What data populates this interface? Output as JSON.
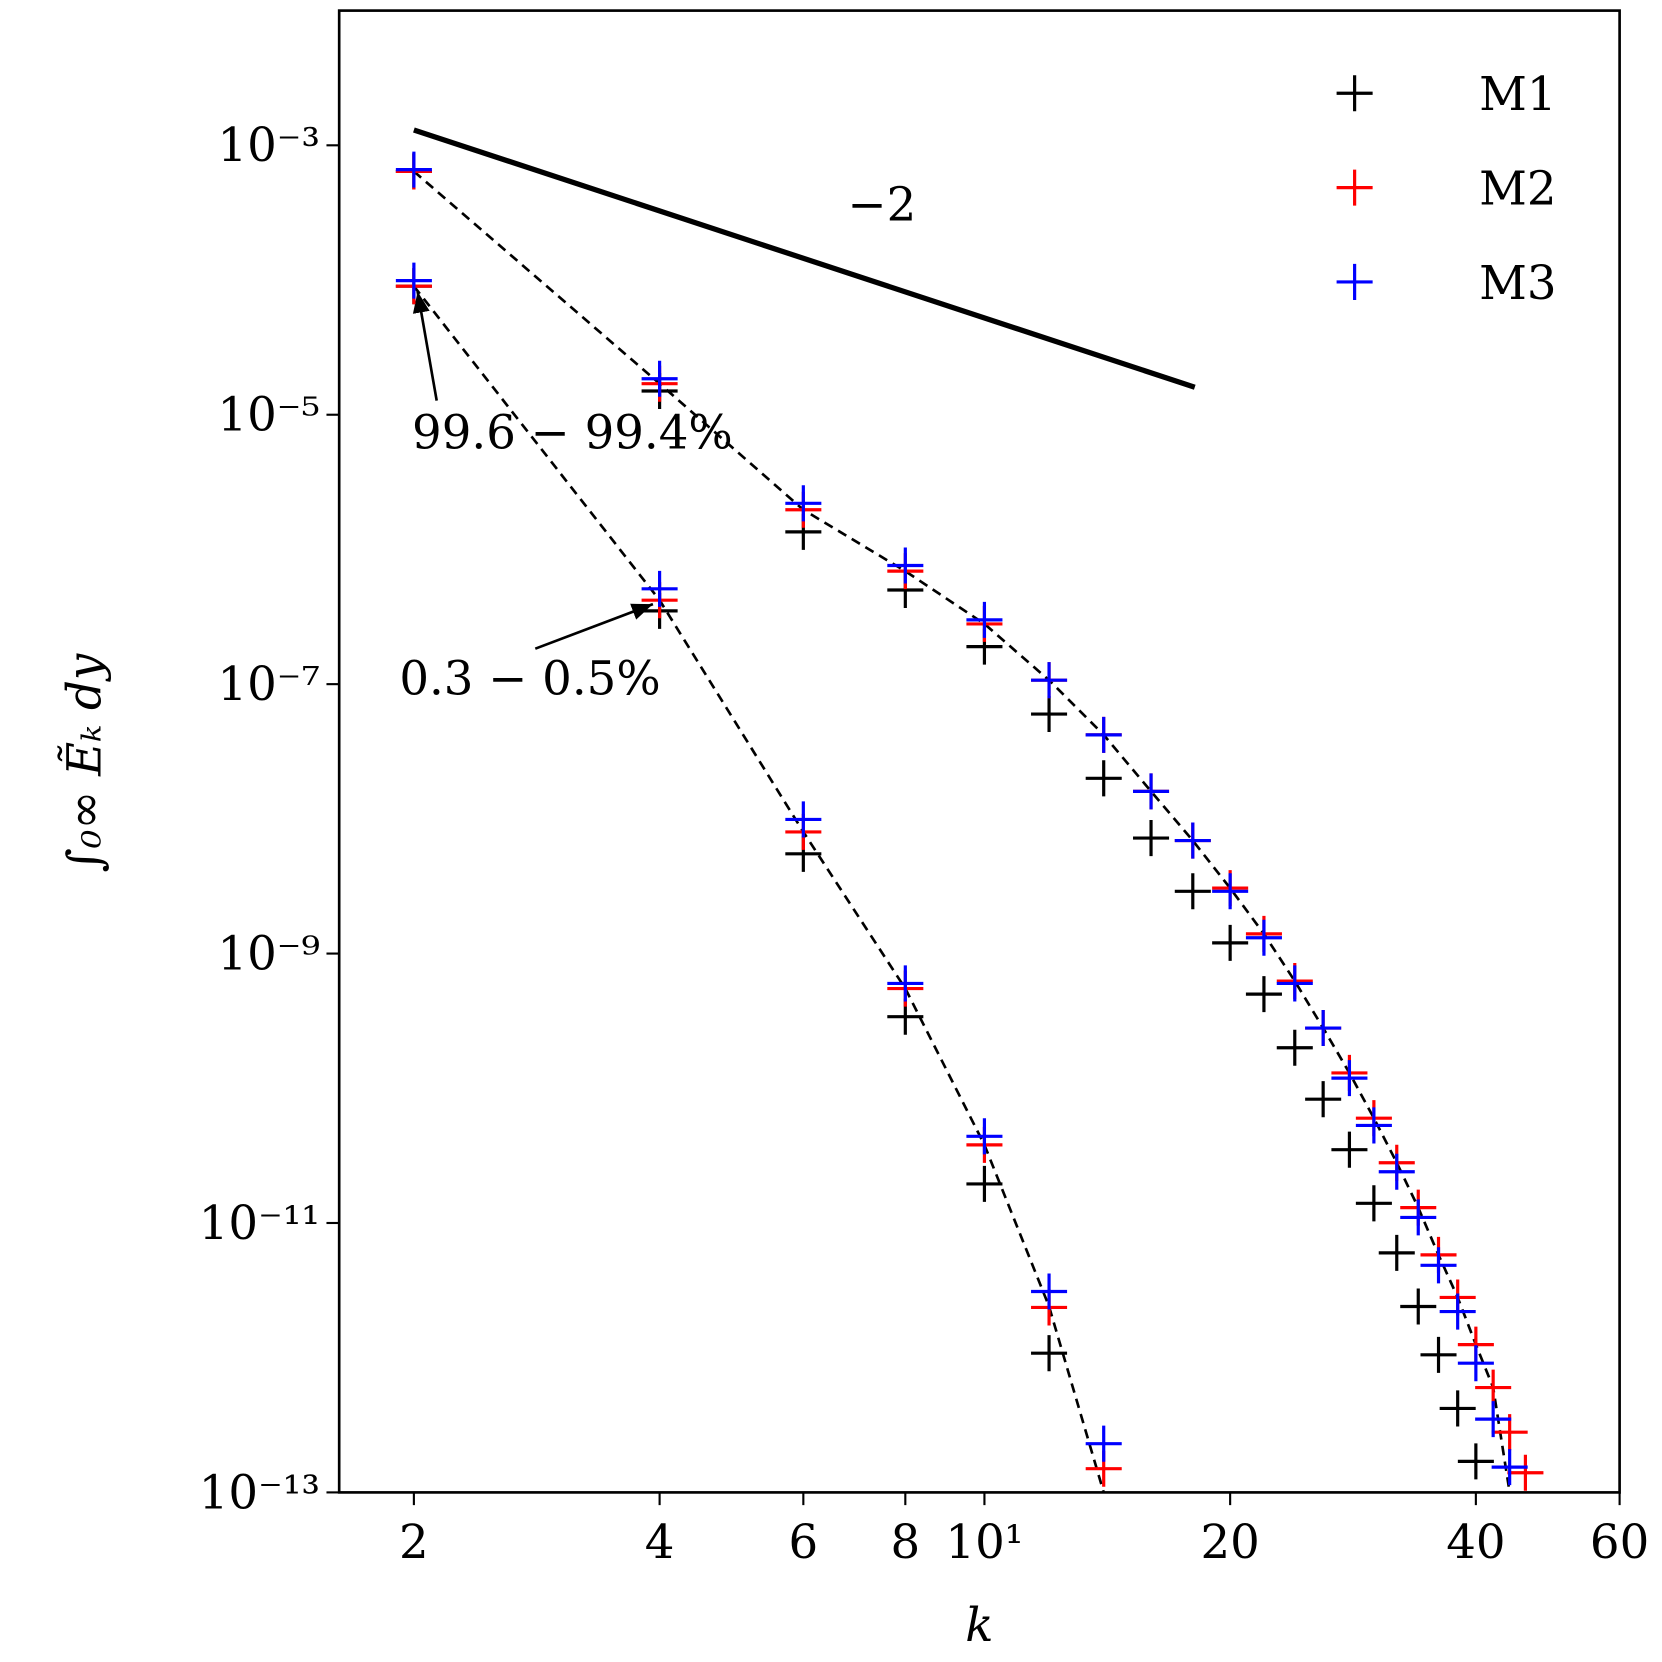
{
  "chart_data": {
    "type": "scatter",
    "xlabel": "k",
    "ylabel": "∫₀∞ Ẽₖ dy",
    "xscale": "log",
    "yscale": "log",
    "xlim": [
      1.62,
      60
    ],
    "ylim": [
      1e-13,
      0.01
    ],
    "xticks": [
      2,
      4,
      6,
      8,
      {
        "value": 10,
        "label": "10¹"
      },
      20,
      40,
      60
    ],
    "yticks": [
      {
        "value": 0.001,
        "label": "10⁻³"
      },
      {
        "value": 1e-05,
        "label": "10⁻⁵"
      },
      {
        "value": 1e-07,
        "label": "10⁻⁷"
      },
      {
        "value": 1e-09,
        "label": "10⁻⁹"
      },
      {
        "value": 1e-11,
        "label": "10⁻¹¹"
      },
      {
        "value": 1e-13,
        "label": "10⁻¹³"
      }
    ],
    "legend": "upper right",
    "series": [
      {
        "name": "M1",
        "color": "#000000",
        "x": [
          2,
          4,
          6,
          8,
          10,
          12,
          14,
          16,
          18,
          20,
          22,
          24,
          26,
          28,
          30,
          32,
          34,
          36,
          38,
          40,
          2,
          4,
          6,
          8,
          10,
          12
        ],
        "values": [
          0.00064,
          1.5e-05,
          1.35e-06,
          5e-07,
          1.9e-07,
          6e-08,
          2e-08,
          7.2e-09,
          2.9e-09,
          1.2e-09,
          5e-10,
          2e-10,
          8.3e-11,
          3.5e-11,
          1.4e-11,
          6e-12,
          2.4e-12,
          1.05e-12,
          4.2e-13,
          1.7e-13,
          9e-05,
          3.5e-07,
          5.5e-09,
          3.4e-10,
          1.95e-11,
          1.08e-12
        ]
      },
      {
        "name": "M2",
        "color": "#ff0000",
        "x": [
          2,
          4,
          6,
          8,
          10,
          12,
          14,
          16,
          18,
          20,
          22,
          24,
          26,
          28,
          30,
          32,
          34,
          36,
          38,
          40,
          42,
          44,
          46,
          2,
          4,
          6,
          8,
          10,
          12,
          14
        ],
        "values": [
          0.00064,
          1.7e-05,
          1.97e-06,
          6.9e-07,
          2.8e-07,
          1.07e-07,
          4.2e-08,
          1.6e-08,
          6.9e-09,
          3.06e-09,
          1.4e-09,
          6.25e-10,
          2.8e-10,
          1.3e-10,
          6e-11,
          2.8e-11,
          1.3e-11,
          5.8e-12,
          2.8e-12,
          1.25e-12,
          6e-13,
          2.8e-13,
          1.4e-13,
          9e-05,
          4.2e-07,
          8e-09,
          5.5e-10,
          3.8e-11,
          2.36e-12,
          1.5e-13
        ]
      },
      {
        "name": "M3",
        "color": "#0000ff",
        "x": [
          2,
          4,
          6,
          8,
          10,
          12,
          14,
          16,
          18,
          20,
          22,
          24,
          26,
          28,
          30,
          32,
          34,
          36,
          38,
          40,
          42,
          44,
          2,
          4,
          6,
          8,
          10,
          12,
          14
        ],
        "values": [
          0.00066,
          1.85e-05,
          2.2e-06,
          7.6e-07,
          3e-07,
          1.07e-07,
          4.2e-08,
          1.6e-08,
          6.9e-09,
          2.9e-09,
          1.31e-09,
          6e-10,
          2.8e-10,
          1.19e-10,
          5.3e-11,
          2.4e-11,
          1.1e-11,
          4.85e-12,
          2.2e-12,
          9.1e-13,
          3.5e-13,
          1.54e-13,
          9.9e-05,
          5.1e-07,
          9.9e-09,
          6e-10,
          4.4e-11,
          3.1e-12,
          2.3e-13
        ]
      }
    ],
    "fit_lines": [
      {
        "x": [
          2,
          4,
          6,
          8,
          10,
          12,
          14,
          16,
          18,
          20,
          22,
          24,
          26,
          28,
          30,
          32,
          34,
          36,
          38,
          40,
          42,
          44
        ],
        "values": [
          0.00064,
          1.7e-05,
          1.97e-06,
          6.9e-07,
          2.8e-07,
          1.07e-07,
          4.2e-08,
          1.6e-08,
          6.9e-09,
          3.06e-09,
          1.4e-09,
          6.25e-10,
          2.8e-10,
          1.3e-10,
          6e-11,
          2.8e-11,
          1.3e-11,
          5.8e-12,
          2.8e-12,
          1.25e-12,
          6e-13,
          1e-13
        ]
      },
      {
        "x": [
          2,
          4,
          6,
          8,
          10,
          12,
          14
        ],
        "values": [
          9e-05,
          4.2e-07,
          8e-09,
          5.5e-10,
          3.8e-11,
          2.4e-12,
          1e-13
        ]
      }
    ],
    "reference_line": {
      "x": [
        2,
        18.1
      ],
      "values": [
        0.0013,
        1.6e-05
      ]
    },
    "annotations": [
      {
        "text": "−2"
      },
      {
        "text": "99.6 − 99.4%"
      },
      {
        "text": "0.3 − 0.5%"
      }
    ]
  }
}
